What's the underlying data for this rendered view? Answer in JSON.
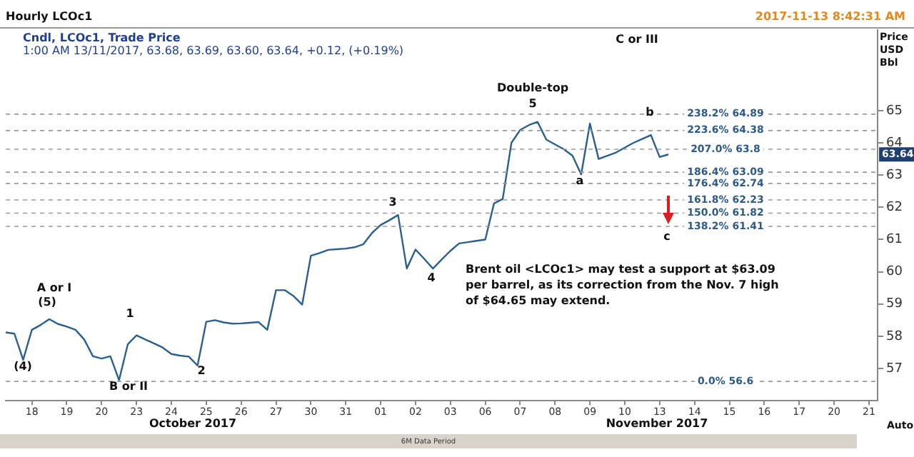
{
  "chart_data": {
    "type": "line",
    "title": "Hourly LCOc1",
    "subtitle": "Cndl, LCOc1, Trade Price",
    "ylabel": "Price USD Bbl",
    "categories": [
      null,
      null,
      null,
      "18",
      null,
      null,
      null,
      "19",
      null,
      null,
      null,
      "20",
      null,
      null,
      null,
      "23",
      null,
      null,
      null,
      "24",
      null,
      null,
      null,
      "25",
      null,
      null,
      null,
      "26",
      null,
      null,
      null,
      "27",
      null,
      null,
      null,
      "30",
      null,
      null,
      null,
      "31",
      null,
      null,
      null,
      "01",
      null,
      null,
      null,
      "02",
      null,
      null,
      null,
      "03",
      null,
      null,
      null,
      "06",
      null,
      null,
      null,
      "07",
      null,
      null,
      null,
      "08",
      null,
      null,
      null,
      "09",
      null,
      null,
      null,
      "10",
      null,
      null,
      null,
      "13",
      null,
      null,
      null,
      "14",
      null,
      null,
      null,
      "15",
      null,
      null,
      null,
      "16",
      null,
      null,
      null,
      "17",
      null,
      null,
      null,
      "20",
      null,
      null,
      null,
      "21",
      null
    ],
    "ylim": [
      56.0,
      67.5
    ],
    "yticks": [
      57,
      58,
      59,
      60,
      61,
      62,
      63,
      64,
      65
    ],
    "grid": false,
    "legend": false,
    "series": [
      {
        "color": "#2b5f8f",
        "values": [
          58.12,
          58.08,
          57.27,
          58.2,
          58.35,
          58.53,
          58.38,
          58.3,
          58.2,
          57.9,
          57.38,
          57.31,
          57.38,
          56.64,
          57.75,
          58.03,
          57.9,
          57.78,
          57.65,
          57.45,
          57.4,
          57.37,
          57.09,
          58.45,
          58.5,
          58.43,
          58.39,
          58.4,
          58.42,
          58.44,
          58.2,
          59.43,
          59.43,
          59.25,
          58.98,
          60.5,
          60.58,
          60.68,
          60.7,
          60.72,
          60.76,
          60.85,
          61.2,
          61.45,
          61.6,
          61.76,
          60.1,
          60.69,
          60.4,
          60.1,
          60.38,
          60.65,
          60.88,
          60.92,
          60.96,
          61.0,
          62.12,
          62.26,
          64.0,
          64.4,
          64.55,
          64.65,
          64.1,
          63.95,
          63.8,
          63.6,
          63.02,
          64.6,
          63.5,
          63.6,
          63.7,
          63.85,
          64.0,
          64.12,
          64.24,
          63.56,
          63.64,
          null,
          null,
          null,
          null,
          null,
          null,
          null,
          null,
          null,
          null,
          null,
          null,
          null,
          null,
          null,
          null,
          null,
          null,
          null,
          null,
          null,
          null,
          null,
          null
        ]
      }
    ],
    "ref_lines": [
      {
        "axis": "y",
        "value": 64.89,
        "label": "238.2% 64.89",
        "color": "#9a9a9a",
        "line_style": "dashed"
      },
      {
        "axis": "y",
        "value": 64.38,
        "label": "223.6% 64.38",
        "color": "#9a9a9a",
        "line_style": "dashed"
      },
      {
        "axis": "y",
        "value": 63.8,
        "label": "207.0% 63.8",
        "color": "#9a9a9a",
        "line_style": "dashed"
      },
      {
        "axis": "y",
        "value": 63.09,
        "label": "186.4% 63.09",
        "color": "#9a9a9a",
        "line_style": "dashed"
      },
      {
        "axis": "y",
        "value": 62.74,
        "label": "176.4% 62.74",
        "color": "#9a9a9a",
        "line_style": "dashed"
      },
      {
        "axis": "y",
        "value": 62.23,
        "label": "161.8% 62.23",
        "color": "#9a9a9a",
        "line_style": "dashed"
      },
      {
        "axis": "y",
        "value": 61.82,
        "label": "150.0% 61.82",
        "color": "#9a9a9a",
        "line_style": "dashed"
      },
      {
        "axis": "y",
        "value": 61.41,
        "label": "138.2% 61.41",
        "color": "#9a9a9a",
        "line_style": "dashed"
      },
      {
        "axis": "y",
        "value": 56.6,
        "label": "0.0% 56.6",
        "color": "#9a9a9a",
        "line_style": "dashed"
      }
    ],
    "annotations": [
      "1:00 AM 13/11/2017, 63.68, 63.69, 63.60, 63.64, +0.12, (+0.19%)",
      "2017-11-13 8:42:31 AM",
      "Brent oil <LCOc1> may test a support at $63.09 per barrel, as its correction from the Nov. 7 high of $64.65 may extend.",
      "Auto",
      "6M Data Period",
      "October 2017",
      "November 2017",
      "A or I",
      "(5)",
      "(4)",
      "1",
      "B or II",
      "2",
      "3",
      "4",
      "5",
      "Double-top",
      "a",
      "b",
      "c",
      "C or III",
      {
        "text": "63.64",
        "y": 63.64
      }
    ]
  }
}
